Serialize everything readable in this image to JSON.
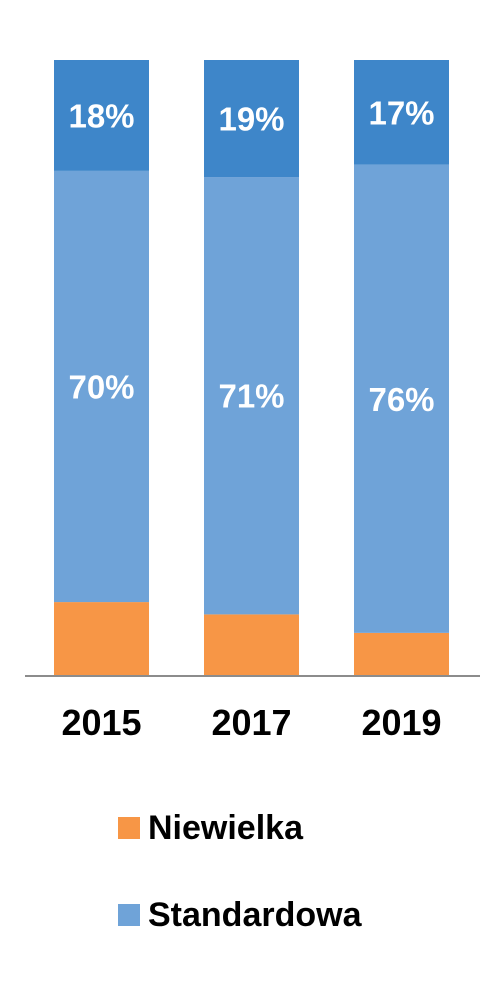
{
  "chart_data": {
    "type": "bar",
    "stacked": true,
    "categories": [
      "2015",
      "2017",
      "2019"
    ],
    "series": [
      {
        "name": "Niewielka",
        "values": [
          12,
          10,
          7
        ],
        "labels": [
          "",
          "",
          ""
        ],
        "color": "#F79646"
      },
      {
        "name": "Standardowa",
        "values": [
          70,
          71,
          76
        ],
        "labels": [
          "70%",
          "71%",
          "76%"
        ],
        "color": "#6FA3D8"
      },
      {
        "name": "",
        "values": [
          18,
          19,
          17
        ],
        "labels": [
          "18%",
          "19%",
          "17%"
        ],
        "color": "#3E86C9"
      }
    ],
    "ylim": [
      0,
      100
    ],
    "title": "",
    "xlabel": "",
    "ylabel": "",
    "grid": false,
    "legend_position": "bottom"
  },
  "legend": {
    "items": [
      {
        "label": "Niewielka",
        "color": "#F79646"
      },
      {
        "label": "Standardowa",
        "color": "#6FA3D8"
      }
    ]
  }
}
